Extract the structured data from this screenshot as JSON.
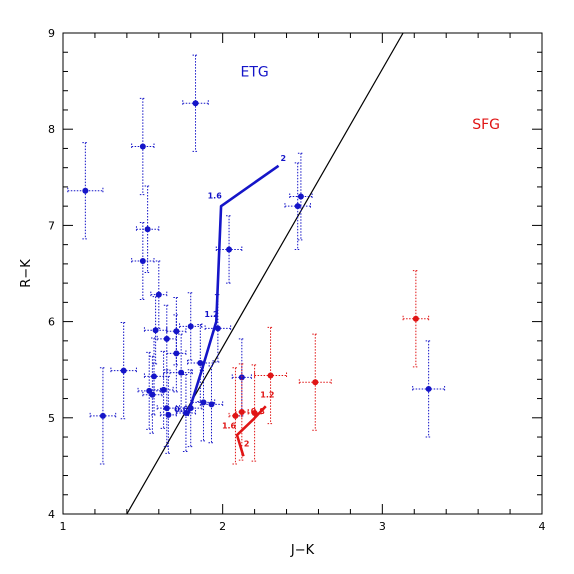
{
  "chart_data": {
    "type": "scatter",
    "xlabel": "J−K",
    "ylabel": "R−K",
    "xlim": [
      1,
      4
    ],
    "ylim": [
      4,
      9
    ],
    "x_ticks": [
      "1",
      "2",
      "3",
      "4"
    ],
    "y_ticks": [
      "4",
      "5",
      "6",
      "7",
      "8",
      "9"
    ],
    "grid": false,
    "colors": {
      "etg": "#1515c8",
      "sfg": "#e01515",
      "divider": "#000000"
    },
    "region_labels": [
      {
        "text": "ETG",
        "x": 2.2,
        "y": 8.55,
        "color": "#1515c8"
      },
      {
        "text": "SFG",
        "x": 3.65,
        "y": 8.0,
        "color": "#e01515"
      }
    ],
    "divider_line": {
      "x": [
        1.4,
        3.13
      ],
      "y": [
        4.0,
        9.0
      ]
    },
    "series": [
      {
        "group": "etg",
        "points": [
          {
            "x": 1.14,
            "y": 7.36,
            "xerr": 0.11,
            "yerr": 0.5
          },
          {
            "x": 1.5,
            "y": 7.82,
            "xerr": 0.07,
            "yerr": 0.5
          },
          {
            "x": 1.83,
            "y": 8.27,
            "xerr": 0.08,
            "yerr": 0.5
          },
          {
            "x": 1.53,
            "y": 6.96,
            "xerr": 0.07,
            "yerr": 0.45
          },
          {
            "x": 1.5,
            "y": 6.63,
            "xerr": 0.07,
            "yerr": 0.4
          },
          {
            "x": 1.6,
            "y": 6.28,
            "xerr": 0.05,
            "yerr": 0.35
          },
          {
            "x": 2.04,
            "y": 6.75,
            "xerr": 0.08,
            "yerr": 0.35
          },
          {
            "x": 2.49,
            "y": 7.3,
            "xerr": 0.07,
            "yerr": 0.45
          },
          {
            "x": 2.47,
            "y": 7.2,
            "xerr": 0.08,
            "yerr": 0.45
          },
          {
            "x": 1.58,
            "y": 5.91,
            "xerr": 0.07,
            "yerr": 0.35
          },
          {
            "x": 1.65,
            "y": 5.82,
            "xerr": 0.06,
            "yerr": 0.35
          },
          {
            "x": 1.71,
            "y": 5.9,
            "xerr": 0.06,
            "yerr": 0.35
          },
          {
            "x": 1.8,
            "y": 5.95,
            "xerr": 0.07,
            "yerr": 0.35
          },
          {
            "x": 1.97,
            "y": 5.93,
            "xerr": 0.08,
            "yerr": 0.35
          },
          {
            "x": 1.71,
            "y": 5.67,
            "xerr": 0.06,
            "yerr": 0.4
          },
          {
            "x": 1.63,
            "y": 5.29,
            "xerr": 0.06,
            "yerr": 0.4
          },
          {
            "x": 1.57,
            "y": 5.43,
            "xerr": 0.06,
            "yerr": 0.4
          },
          {
            "x": 1.38,
            "y": 5.49,
            "xerr": 0.08,
            "yerr": 0.5
          },
          {
            "x": 1.54,
            "y": 5.28,
            "xerr": 0.07,
            "yerr": 0.4
          },
          {
            "x": 1.56,
            "y": 5.24,
            "xerr": 0.06,
            "yerr": 0.4
          },
          {
            "x": 1.74,
            "y": 5.47,
            "xerr": 0.07,
            "yerr": 0.4
          },
          {
            "x": 1.86,
            "y": 5.57,
            "xerr": 0.08,
            "yerr": 0.4
          },
          {
            "x": 1.25,
            "y": 5.02,
            "xerr": 0.08,
            "yerr": 0.5
          },
          {
            "x": 1.65,
            "y": 5.1,
            "xerr": 0.06,
            "yerr": 0.4
          },
          {
            "x": 1.66,
            "y": 5.03,
            "xerr": 0.05,
            "yerr": 0.4
          },
          {
            "x": 1.77,
            "y": 5.05,
            "xerr": 0.06,
            "yerr": 0.4
          },
          {
            "x": 1.8,
            "y": 5.1,
            "xerr": 0.07,
            "yerr": 0.4
          },
          {
            "x": 1.88,
            "y": 5.16,
            "xerr": 0.07,
            "yerr": 0.4
          },
          {
            "x": 1.93,
            "y": 5.14,
            "xerr": 0.07,
            "yerr": 0.4
          },
          {
            "x": 2.12,
            "y": 5.42,
            "xerr": 0.06,
            "yerr": 0.4
          },
          {
            "x": 3.29,
            "y": 5.3,
            "xerr": 0.1,
            "yerr": 0.5
          }
        ]
      },
      {
        "group": "sfg",
        "points": [
          {
            "x": 2.08,
            "y": 5.02,
            "xerr": 0.04,
            "yerr": 0.5
          },
          {
            "x": 2.12,
            "y": 5.06,
            "xerr": 0.04,
            "yerr": 0.5
          },
          {
            "x": 2.2,
            "y": 5.05,
            "xerr": 0.04,
            "yerr": 0.5
          },
          {
            "x": 2.3,
            "y": 5.44,
            "xerr": 0.1,
            "yerr": 0.5
          },
          {
            "x": 2.58,
            "y": 5.37,
            "xerr": 0.1,
            "yerr": 0.5
          },
          {
            "x": 3.21,
            "y": 6.03,
            "xerr": 0.08,
            "yerr": 0.5
          }
        ]
      }
    ],
    "tracks": [
      {
        "group": "etg",
        "x": [
          1.78,
          1.87,
          1.96,
          1.99,
          2.35
        ],
        "y": [
          5.02,
          5.5,
          6.0,
          7.2,
          7.62
        ],
        "labels": [
          {
            "text": "1.2",
            "x": 1.93,
            "y": 6.05
          },
          {
            "text": "1.6",
            "x": 1.95,
            "y": 7.28
          },
          {
            "text": "2",
            "x": 2.38,
            "y": 7.67
          },
          {
            "text": "0.6",
            "x": 1.74,
            "y": 5.06
          }
        ]
      },
      {
        "group": "sfg",
        "x": [
          2.13,
          2.09,
          2.19,
          2.27
        ],
        "y": [
          4.6,
          4.82,
          4.98,
          5.12
        ],
        "labels": [
          {
            "text": "1.2",
            "x": 2.28,
            "y": 5.21
          },
          {
            "text": "0.8",
            "x": 2.22,
            "y": 5.04
          },
          {
            "text": "1.6",
            "x": 2.04,
            "y": 4.89
          },
          {
            "text": "2",
            "x": 2.15,
            "y": 4.7
          }
        ]
      }
    ]
  }
}
